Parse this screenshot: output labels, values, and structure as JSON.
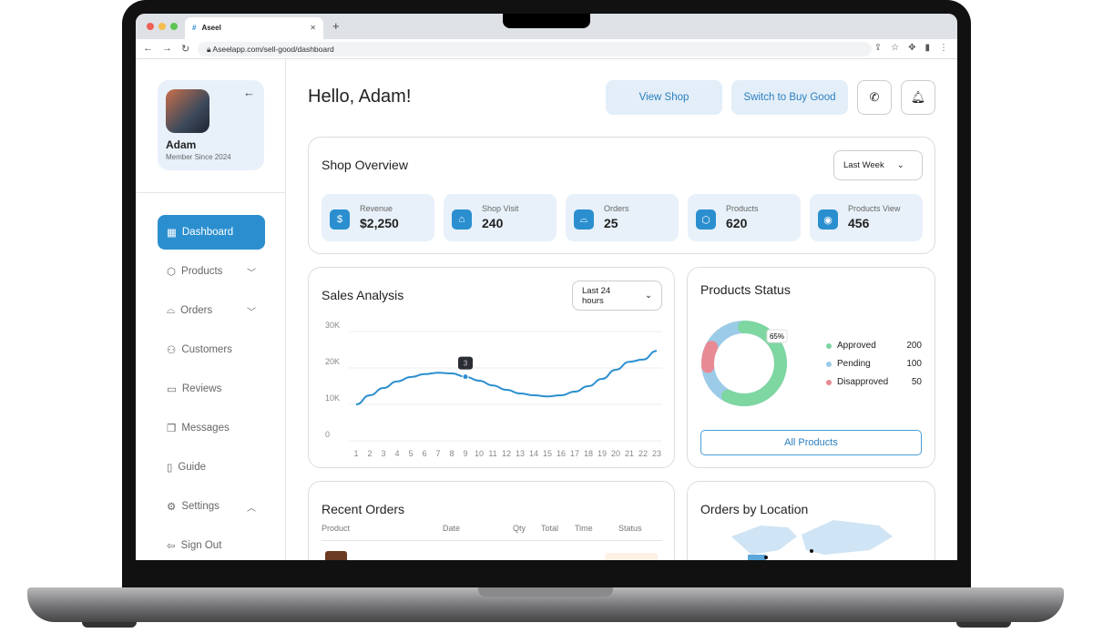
{
  "browser": {
    "tab_title": "Aseel",
    "url": "Aseelapp.com/sell-good/dashboard"
  },
  "profile": {
    "name": "Adam",
    "since": "Member Since 2024"
  },
  "sidebar": {
    "items": [
      {
        "label": "Dashboard",
        "icon": "grid-icon",
        "active": true
      },
      {
        "label": "Products",
        "icon": "box-icon",
        "chevron": "down"
      },
      {
        "label": "Orders",
        "icon": "basket-icon",
        "chevron": "down"
      },
      {
        "label": "Customers",
        "icon": "users-icon"
      },
      {
        "label": "Reviews",
        "icon": "chat-icon"
      },
      {
        "label": "Messages",
        "icon": "messages-icon"
      },
      {
        "label": "Guide",
        "icon": "book-icon"
      },
      {
        "label": "Settings",
        "icon": "gear-icon",
        "chevron": "up"
      },
      {
        "label": "Sign Out",
        "icon": "logout-icon"
      }
    ]
  },
  "header": {
    "greeting": "Hello, Adam!",
    "view_shop": "View Shop",
    "switch": "Switch to Buy Good"
  },
  "overview": {
    "title": "Shop Overview",
    "period": "Last Week",
    "stats": [
      {
        "label": "Revenue",
        "value": "$2,250",
        "icon": "dollar-icon"
      },
      {
        "label": "Shop Visit",
        "value": "240",
        "icon": "store-icon"
      },
      {
        "label": "Orders",
        "value": "25",
        "icon": "basket-icon"
      },
      {
        "label": "Products",
        "value": "620",
        "icon": "box-icon"
      },
      {
        "label": "Products View",
        "value": "456",
        "icon": "eye-icon"
      }
    ]
  },
  "sales": {
    "title": "Sales Analysis",
    "period": "Last 24 hours",
    "tooltip": "3"
  },
  "chart_data": {
    "type": "line",
    "x": [
      1,
      2,
      3,
      4,
      5,
      6,
      7,
      8,
      9,
      10,
      11,
      12,
      13,
      14,
      15,
      16,
      17,
      18,
      19,
      20,
      21,
      22,
      23
    ],
    "values": [
      10,
      12.5,
      14.5,
      16.3,
      17.5,
      18.3,
      18.7,
      18.5,
      17.6,
      16.5,
      15.2,
      14,
      13,
      12.5,
      12.2,
      12.5,
      13.5,
      15,
      17,
      19.5,
      21.7,
      22.3,
      24.7
    ],
    "yticks": [
      "30K",
      "20K",
      "10K",
      "0"
    ],
    "ylim": [
      0,
      30
    ],
    "grid": true,
    "highlight_x": 9,
    "color": "#2b8fcf"
  },
  "status": {
    "title": "Products Status",
    "percent_label": "65%",
    "items": [
      {
        "label": "Approved",
        "value": "200",
        "color": "#7ed6a0"
      },
      {
        "label": "Pending",
        "value": "100",
        "color": "#9ccbe8"
      },
      {
        "label": "Disapproved",
        "value": "50",
        "color": "#e88a93"
      }
    ],
    "button": "All Products"
  },
  "orders": {
    "title": "Recent Orders",
    "columns": [
      "Product",
      "Date",
      "Qty",
      "Total",
      "Time",
      "Status"
    ]
  },
  "location": {
    "title": "Orders by Location"
  }
}
